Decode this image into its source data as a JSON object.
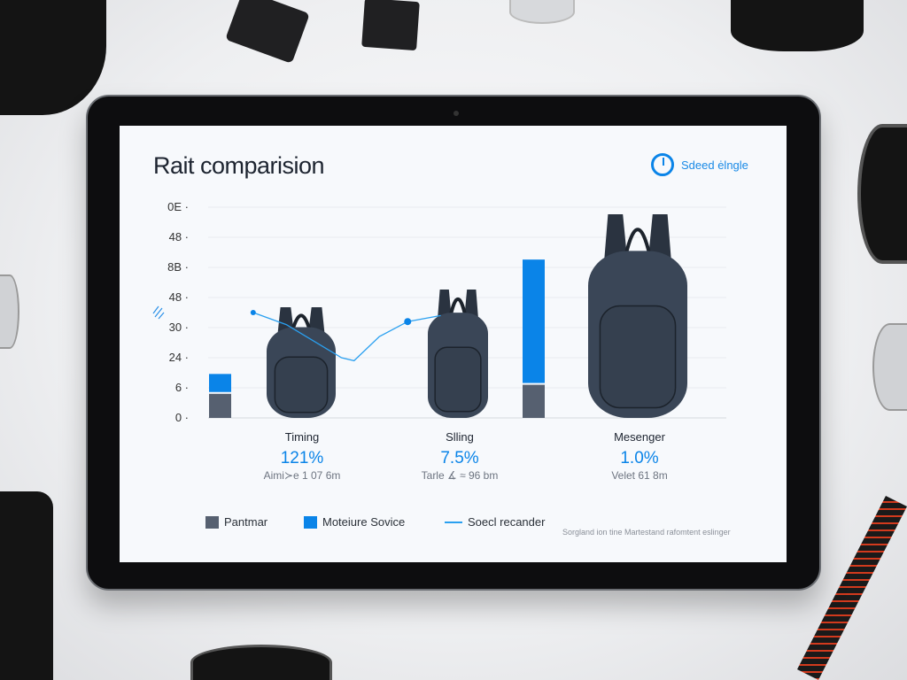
{
  "header": {
    "title": "Rait comparision",
    "badge_label": "Sdeed ėlngle",
    "badge_icon": "timer-icon"
  },
  "colors": {
    "primary_series": "#566070",
    "secondary_series": "#0a84e8",
    "line_series": "#2aa0f0",
    "backpack": "#3a4657"
  },
  "categories": [
    {
      "name": "Timing",
      "percent": "121%",
      "subtitle": "Aimi≻e 1 07 6m"
    },
    {
      "name": "Slling",
      "percent": "7.5%",
      "subtitle": "Tarle ∡ ≈ 96 bm"
    },
    {
      "name": "Mesenger",
      "percent": "1.0%",
      "subtitle": "Velet 61 8m"
    }
  ],
  "legend": [
    {
      "label": "Pantmar",
      "type": "square"
    },
    {
      "label": "Moteiure Sovice",
      "type": "square"
    },
    {
      "label": "Soecl recander",
      "type": "line"
    }
  ],
  "footnote": "Sorgland ion tine Martestand rafomtent eslinger",
  "chart_data": {
    "type": "bar",
    "title": "Rait comparision",
    "y_tick_labels": [
      "0",
      "6",
      "24",
      "30",
      "48",
      "8B",
      "48",
      "0E"
    ],
    "ylim": [
      0,
      7
    ],
    "grid": true,
    "legend_position": "bottom",
    "categories": [
      "Timing",
      "Slling",
      "Mesenger"
    ],
    "series": [
      {
        "name": "Pantmar",
        "kind": "bar",
        "values": [
          0.8,
          null,
          1.1
        ]
      },
      {
        "name": "Moteiure Sovice",
        "kind": "bar-stacked",
        "values": [
          0.6,
          null,
          4.1
        ]
      },
      {
        "name": "Soecl recander",
        "kind": "line",
        "points": [
          [
            -0.31,
            3.5
          ],
          [
            -0.1,
            3.1
          ],
          [
            0.25,
            2.0
          ],
          [
            0.33,
            1.9
          ],
          [
            0.49,
            2.7
          ],
          [
            0.67,
            3.2
          ],
          [
            0.88,
            3.4
          ]
        ]
      }
    ]
  }
}
